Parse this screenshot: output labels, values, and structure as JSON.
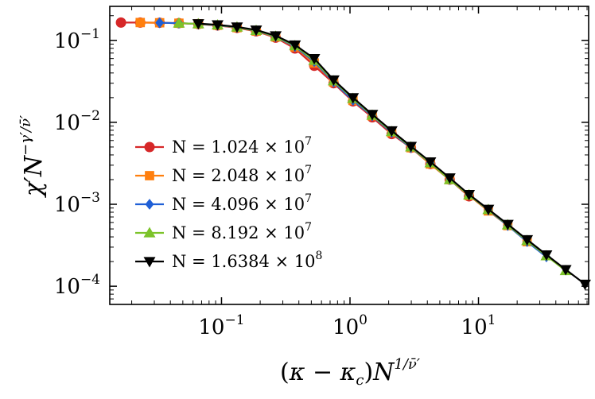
{
  "chart_data": {
    "type": "line",
    "xlabel": "(κ − κ_c) N^{1/ν̄′}",
    "ylabel": "χ′ N^{−γ′/ν̄′}",
    "x_scale": "log",
    "y_scale": "log",
    "xlim": [
      0.0135,
      72
    ],
    "ylim": [
      6e-05,
      0.26
    ],
    "x_ticks": [
      {
        "value": 0.1,
        "base": "10",
        "exp": "-1"
      },
      {
        "value": 1,
        "base": "10",
        "exp": "0"
      },
      {
        "value": 10,
        "base": "10",
        "exp": "1"
      }
    ],
    "y_ticks": [
      {
        "value": 0.1,
        "base": "10",
        "exp": "-1"
      },
      {
        "value": 0.01,
        "base": "10",
        "exp": "-2"
      },
      {
        "value": 0.001,
        "base": "10",
        "exp": "-3"
      },
      {
        "value": 0.0001,
        "base": "10",
        "exp": "-4"
      }
    ],
    "grid": false,
    "legend_position": "lower-left",
    "series": [
      {
        "name": "N = 1.024 × 10^7",
        "label_main": "N = 1.024 × 10",
        "label_exp": "7",
        "color": "#d62728",
        "marker": "circle",
        "x": [
          0.0165,
          0.0233,
          0.033,
          0.0466,
          0.066,
          0.0932,
          0.132,
          0.186,
          0.264,
          0.373,
          0.527,
          0.746,
          1.055,
          1.49,
          2.11,
          2.98,
          4.22,
          5.97,
          8.44
        ],
        "y": [
          0.165,
          0.165,
          0.164,
          0.162,
          0.158,
          0.152,
          0.142,
          0.129,
          0.108,
          0.0795,
          0.049,
          0.03,
          0.018,
          0.0115,
          0.0072,
          0.0049,
          0.0031,
          0.002,
          0.00125
        ]
      },
      {
        "name": "N = 2.048 × 10^7",
        "label_main": "N = 2.048 × 10",
        "label_exp": "7",
        "color": "#ff7f0e",
        "marker": "square",
        "x": [
          0.0233,
          0.033,
          0.0466,
          0.066,
          0.0932,
          0.132,
          0.186,
          0.264,
          0.373,
          0.527,
          0.746,
          1.055,
          1.49,
          2.11,
          2.98,
          4.22,
          5.97,
          8.44,
          11.93,
          16.9,
          23.9
        ],
        "y": [
          0.165,
          0.164,
          0.162,
          0.159,
          0.153,
          0.143,
          0.13,
          0.11,
          0.083,
          0.053,
          0.031,
          0.0185,
          0.012,
          0.0075,
          0.0049,
          0.0031,
          0.002,
          0.00128,
          0.00083,
          0.00055,
          0.00035
        ]
      },
      {
        "name": "N = 4.096 × 10^7",
        "label_main": "N = 4.096 × 10",
        "label_exp": "7",
        "color": "#1f5fd6",
        "marker": "diamond",
        "x": [
          0.033,
          0.0466,
          0.066,
          0.0932,
          0.132,
          0.186,
          0.264,
          0.373,
          0.527,
          0.746,
          1.055,
          1.49,
          2.11,
          2.98,
          4.22,
          5.97,
          8.44,
          11.93,
          16.9,
          23.9,
          33.8
        ],
        "y": [
          0.164,
          0.162,
          0.159,
          0.153,
          0.144,
          0.131,
          0.111,
          0.084,
          0.055,
          0.031,
          0.0185,
          0.012,
          0.0075,
          0.0049,
          0.0032,
          0.002,
          0.0013,
          0.00085,
          0.00055,
          0.00035,
          0.000228
        ]
      },
      {
        "name": "N = 8.192 × 10^7",
        "label_main": "N = 8.192 × 10",
        "label_exp": "7",
        "color": "#7cc32a",
        "marker": "triangle-up",
        "x": [
          0.0466,
          0.066,
          0.0932,
          0.132,
          0.186,
          0.264,
          0.373,
          0.527,
          0.746,
          1.055,
          1.49,
          2.11,
          2.98,
          4.22,
          5.97,
          8.44,
          11.93,
          16.9,
          23.9,
          33.8,
          47.7
        ],
        "y": [
          0.162,
          0.159,
          0.154,
          0.145,
          0.132,
          0.112,
          0.086,
          0.057,
          0.032,
          0.0195,
          0.0122,
          0.0077,
          0.005,
          0.0032,
          0.002,
          0.0013,
          0.00086,
          0.00056,
          0.00036,
          0.000235,
          0.000155
        ]
      },
      {
        "name": "N = 1.6384 × 10^8",
        "label_main": "N = 1.6384 × 10",
        "label_exp": "8",
        "color": "#000000",
        "marker": "triangle-down",
        "x": [
          0.066,
          0.0932,
          0.132,
          0.186,
          0.264,
          0.373,
          0.527,
          0.746,
          1.055,
          1.49,
          2.11,
          2.98,
          4.22,
          5.97,
          8.44,
          11.93,
          16.9,
          23.9,
          33.8,
          47.7,
          67.5
        ],
        "y": [
          0.16,
          0.155,
          0.146,
          0.134,
          0.114,
          0.088,
          0.06,
          0.033,
          0.02,
          0.0125,
          0.0079,
          0.0051,
          0.0033,
          0.0021,
          0.00132,
          0.00087,
          0.00057,
          0.00037,
          0.000242,
          0.00016,
          0.000106
        ]
      }
    ]
  }
}
